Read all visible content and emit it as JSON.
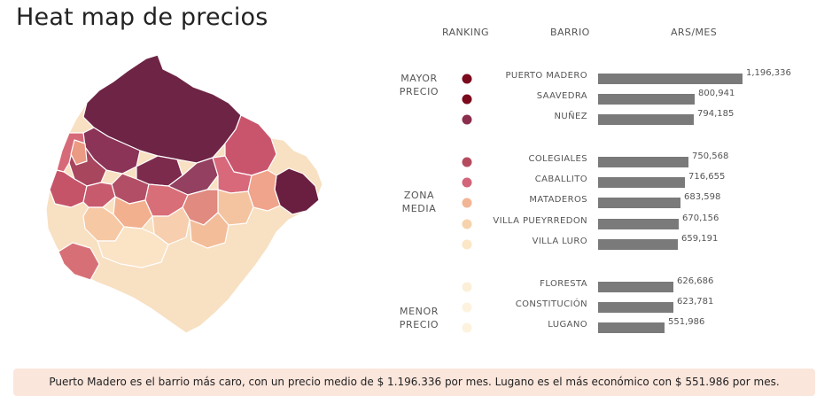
{
  "title": "Heat map de precios",
  "headers": {
    "ranking": "RANKING",
    "barrio": "BARRIO",
    "unit": "ARS/MES"
  },
  "groups": [
    {
      "line1": "MAYOR",
      "line2": "PRECIO"
    },
    {
      "line1": "ZONA",
      "line2": "MEDIA"
    },
    {
      "line1": "MENOR",
      "line2": "PRECIO"
    }
  ],
  "colors": {
    "bar": "#7a7a7a",
    "heat": [
      "#7a0a1c",
      "#7a0a1c",
      "#8b2e4e",
      "#b54b5f",
      "#d2657a",
      "#f2b595",
      "#f6d3ad",
      "#fbe6c6",
      "#fcefd8",
      "#fdf2de"
    ]
  },
  "chart_data": {
    "type": "bar",
    "orientation": "horizontal",
    "categories": [
      "PUERTO MADERO",
      "SAAVEDRA",
      "NUÑEZ",
      "COLEGIALES",
      "CABALLITO",
      "MATADEROS",
      "VILLA PUEYRREDON",
      "VILLA LURO",
      "FLORESTA",
      "CONSTITUCIÓN",
      "LUGANO"
    ],
    "values": [
      1196336,
      800941,
      794185,
      750568,
      716655,
      683598,
      670156,
      659191,
      626686,
      623781,
      551986
    ],
    "value_labels": [
      "1,196,336",
      "800,941",
      "794,185",
      "750,568",
      "716,655",
      "683,598",
      "670,156",
      "659,191",
      "626,686",
      "623,781",
      "551,986"
    ],
    "group_index": [
      0,
      0,
      0,
      1,
      1,
      1,
      1,
      1,
      2,
      2,
      2
    ]
  },
  "footer": "Puerto Madero es el barrio más caro, con un precio medio de $ 1.196.336 por mes. Lugano es el más económico con $ 551.986 por mes."
}
